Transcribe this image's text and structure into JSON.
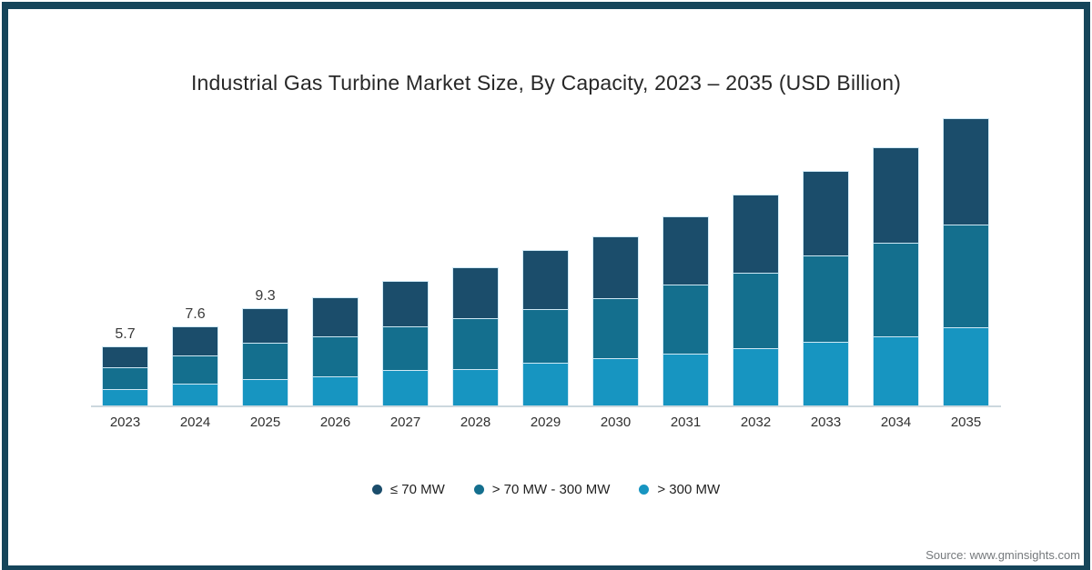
{
  "title": "Industrial Gas Turbine Market Size, By Capacity, 2023 – 2035 (USD Billion)",
  "source": "Source: www.gminsights.com",
  "colors": {
    "segment_le_70mw": "#1b4d6b",
    "segment_70_300mw": "#146f8e",
    "segment_gt_300mw": "#1795c1",
    "frame": "#16455a",
    "axis_line": "#ccd8de",
    "segment_outline": "#cfe9f5",
    "title_text": "#282828",
    "tick_text": "#303030",
    "source_text": "#75797c"
  },
  "chart_data": {
    "type": "bar",
    "stacked": true,
    "title": "Industrial Gas Turbine Market Size, By Capacity, 2023 – 2035 (USD Billion)",
    "unit": "USD Billion",
    "categories": [
      "2023",
      "2024",
      "2025",
      "2026",
      "2027",
      "2028",
      "2029",
      "2030",
      "2031",
      "2032",
      "2033",
      "2034",
      "2035"
    ],
    "series": [
      {
        "name": "≤ 70 MW",
        "color": "#1b4d6b",
        "values": [
          2.0,
          2.8,
          3.3,
          3.8,
          4.4,
          4.9,
          5.7,
          6.0,
          6.6,
          7.5,
          8.2,
          9.2,
          10.3
        ]
      },
      {
        "name": "> 70 MW - 300 MW",
        "color": "#146f8e",
        "values": [
          2.1,
          2.7,
          3.5,
          3.9,
          4.2,
          4.9,
          5.2,
          5.8,
          6.7,
          7.3,
          8.3,
          9.0,
          9.9
        ]
      },
      {
        "name": "> 300 MW",
        "color": "#1795c1",
        "values": [
          1.6,
          2.1,
          2.5,
          2.8,
          3.4,
          3.5,
          4.1,
          4.6,
          5.0,
          5.5,
          6.1,
          6.7,
          7.5
        ]
      }
    ],
    "stack_order": "first series renders at the top of each stack, last series at the bottom",
    "totals": [
      5.7,
      7.6,
      9.3,
      10.5,
      12.0,
      13.3,
      15.0,
      16.4,
      18.3,
      20.3,
      22.6,
      24.9,
      27.7
    ],
    "data_labels": {
      "2023": "5.7",
      "2024": "7.6",
      "2025": "9.3"
    },
    "legend_position": "bottom",
    "grid": false,
    "y_axis_visible": false,
    "ylim": [
      0,
      28
    ]
  }
}
